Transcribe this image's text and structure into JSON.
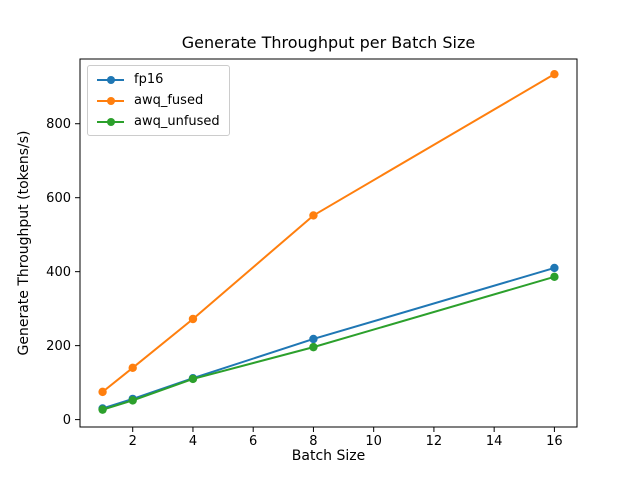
{
  "window": {
    "background": "#ffffff"
  },
  "chart_data": {
    "type": "line",
    "title": "Generate Throughput per Batch Size",
    "xlabel": "Batch Size",
    "ylabel": "Generate Throughput (tokens/s)",
    "x": [
      1,
      2,
      4,
      8,
      16
    ],
    "series": [
      {
        "name": "fp16",
        "color": "#1f77b4",
        "values": [
          30,
          56,
          112,
          218,
          410
        ]
      },
      {
        "name": "awq_fused",
        "color": "#ff7f0e",
        "values": [
          75,
          140,
          272,
          552,
          934
        ]
      },
      {
        "name": "awq_unfused",
        "color": "#2ca02c",
        "values": [
          27,
          52,
          110,
          196,
          386
        ]
      }
    ],
    "xticks": [
      2,
      4,
      6,
      8,
      10,
      12,
      14,
      16
    ],
    "yticks": [
      0,
      200,
      400,
      600,
      800
    ],
    "xlim": [
      0.25,
      16.75
    ],
    "ylim": [
      -20,
      975
    ],
    "grid": false,
    "marker": "o",
    "legend_position": "upper left",
    "axis_color": "#000000",
    "legend_border_color": "#cccccc"
  }
}
